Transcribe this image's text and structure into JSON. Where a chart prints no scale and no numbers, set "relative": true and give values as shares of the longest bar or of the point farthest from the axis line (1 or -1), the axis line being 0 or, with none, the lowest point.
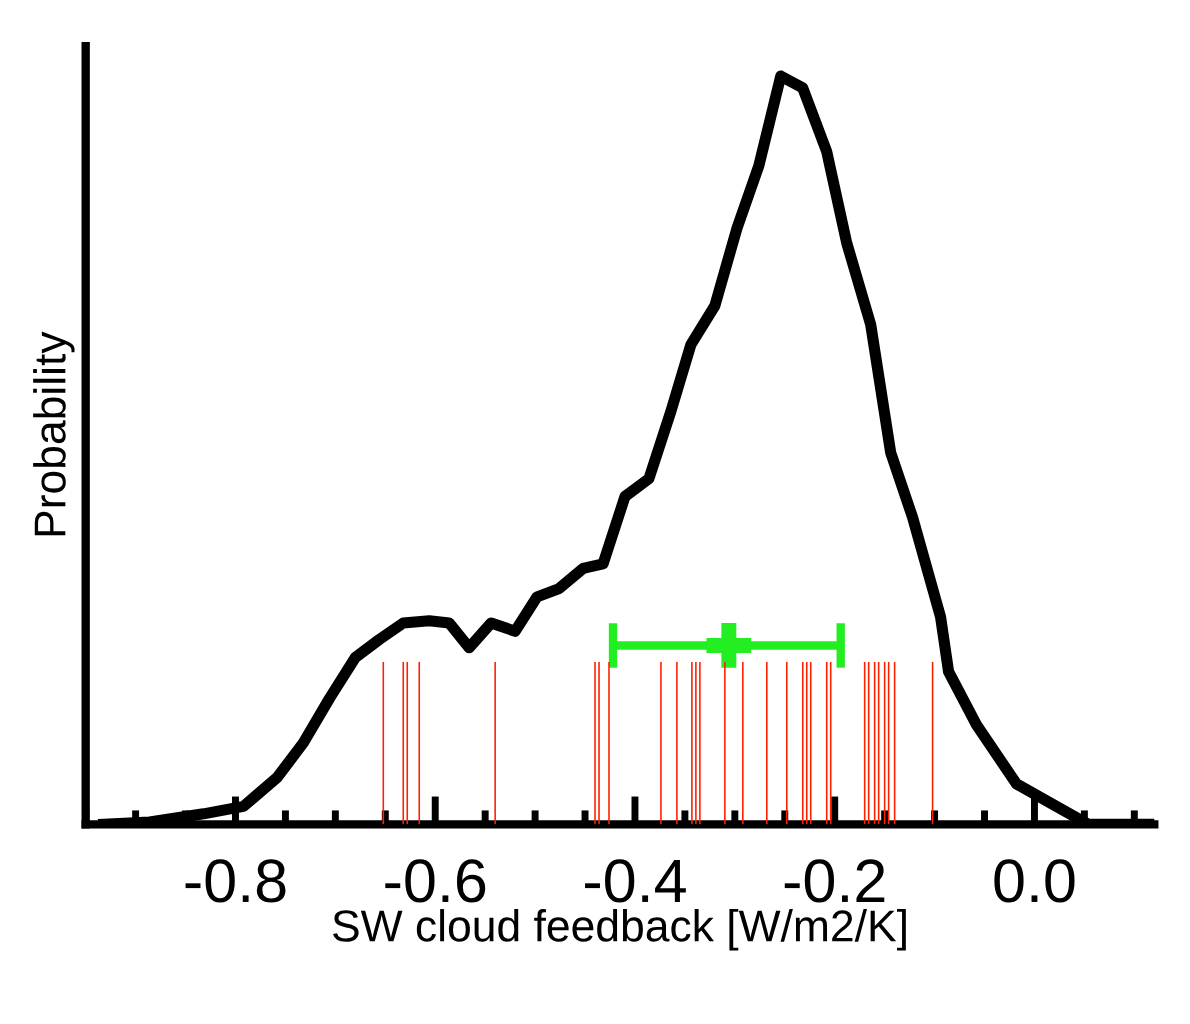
{
  "chart_data": {
    "type": "line",
    "xlabel": "SW cloud feedback [W/m2/K]",
    "ylabel": "Probability",
    "relative": true,
    "xlim": [
      -0.95,
      0.12
    ],
    "xticks": [
      -0.8,
      -0.6,
      -0.4,
      -0.2,
      {
        "value": 0,
        "label": "0.0"
      }
    ],
    "grid": false,
    "legend": false,
    "series": [
      {
        "color": "#000000",
        "x": [
          -0.932,
          -0.886,
          -0.832,
          -0.792,
          -0.758,
          -0.732,
          -0.706,
          -0.68,
          -0.656,
          -0.632,
          -0.606,
          -0.586,
          -0.566,
          -0.544,
          -0.52,
          -0.498,
          -0.476,
          -0.452,
          -0.432,
          -0.41,
          -0.386,
          -0.364,
          -0.344,
          -0.32,
          -0.298,
          -0.276,
          -0.254,
          -0.232,
          -0.208,
          -0.188,
          -0.164,
          -0.144,
          -0.122,
          -0.094,
          -0.086,
          -0.058,
          -0.018,
          0.022,
          0.054,
          0.118
        ],
        "values": [
          0,
          0.003,
          0.014,
          0.024,
          0.063,
          0.109,
          0.168,
          0.223,
          0.247,
          0.269,
          0.272,
          0.269,
          0.236,
          0.269,
          0.258,
          0.304,
          0.315,
          0.342,
          0.348,
          0.438,
          0.462,
          0.552,
          0.641,
          0.693,
          0.796,
          0.88,
          1.0,
          0.984,
          0.899,
          0.777,
          0.668,
          0.497,
          0.41,
          0.277,
          0.204,
          0.133,
          0.054,
          0.024,
          0,
          0
        ]
      },
      {
        "type": "bar",
        "color": "#ff2000",
        "x": [
          -0.652,
          -0.632,
          -0.628,
          -0.616,
          -0.54,
          -0.44,
          -0.436,
          -0.426,
          -0.374,
          -0.358,
          -0.343,
          -0.339,
          -0.335,
          -0.31,
          -0.292,
          -0.268,
          -0.248,
          -0.232,
          -0.228,
          -0.224,
          -0.208,
          -0.204,
          -0.17,
          -0.166,
          -0.16,
          -0.156,
          -0.15,
          -0.146,
          -0.14,
          -0.102
        ],
        "values": [
          0.217,
          0.217,
          0.217,
          0.217,
          0.217,
          0.217,
          0.217,
          0.217,
          0.217,
          0.217,
          0.217,
          0.217,
          0.217,
          0.217,
          0.217,
          0.217,
          0.217,
          0.217,
          0.217,
          0.217,
          0.217,
          0.217,
          0.217,
          0.217,
          0.217,
          0.217,
          0.217,
          0.217,
          0.217,
          0.217
        ]
      },
      {
        "type": "scatter",
        "color": "#22ee22",
        "x": [
          -0.306
        ],
        "values": [
          0.239
        ],
        "marker": "cross",
        "xerrors": [
          [
            -0.422,
            -0.194
          ]
        ]
      }
    ]
  }
}
